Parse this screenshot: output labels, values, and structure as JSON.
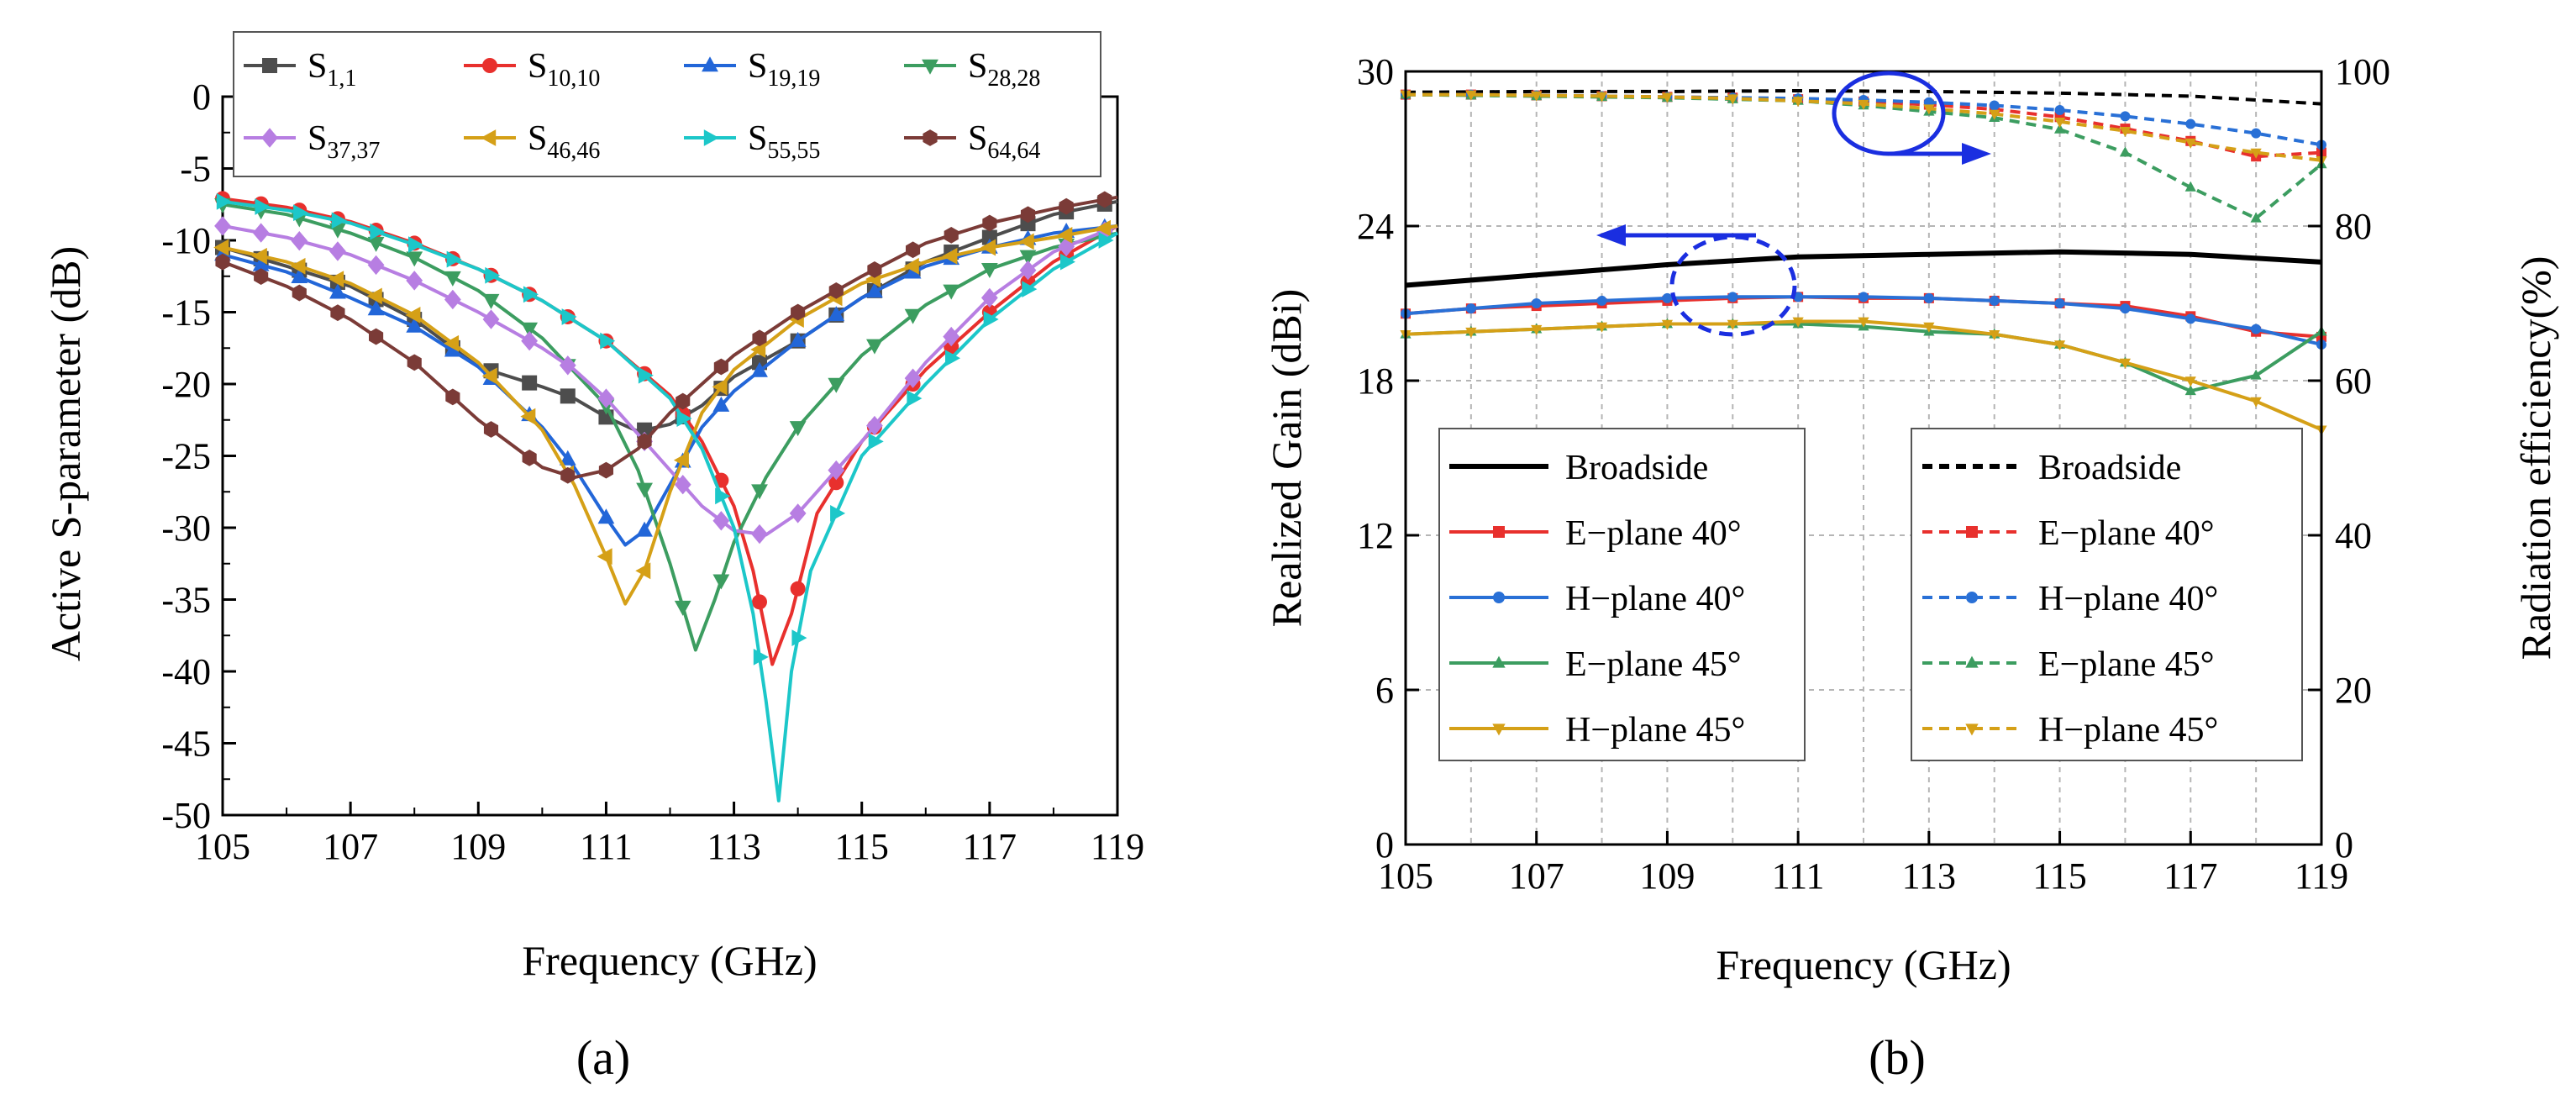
{
  "chart_data": [
    {
      "type": "line",
      "panel_label": "(a)",
      "xlabel": "Frequency (GHz)",
      "ylabel": "Active S-parameter (dB)",
      "xlim": [
        105,
        119
      ],
      "ylim": [
        -50,
        0
      ],
      "xticks": [
        105,
        107,
        109,
        111,
        113,
        115,
        117,
        119
      ],
      "yticks": [
        0,
        -5,
        -10,
        -15,
        -20,
        -25,
        -30,
        -35,
        -40,
        -45,
        -50
      ],
      "legend_position": "top",
      "series": [
        {
          "label": "S",
          "sub": "1,1",
          "color": "#4d4d4d",
          "marker": "square",
          "x": [
            105,
            106,
            107,
            108,
            109,
            110,
            110.5,
            111,
            111.5,
            112,
            112.5,
            113,
            114,
            115,
            116,
            117,
            118,
            119
          ],
          "y": [
            -10.5,
            -11.8,
            -13.2,
            -15.5,
            -18.8,
            -20.2,
            -21,
            -22.3,
            -23.3,
            -22.8,
            -21.5,
            -19.5,
            -17,
            -14,
            -11.5,
            -9.8,
            -8.2,
            -7.3
          ]
        },
        {
          "label": "S",
          "sub": "10,10",
          "color": "#e8302d",
          "marker": "circle",
          "x": [
            105,
            106,
            107,
            108,
            109,
            110,
            111,
            112,
            112.5,
            113,
            113.3,
            113.6,
            113.9,
            114.3,
            115,
            116,
            117,
            118,
            119
          ],
          "y": [
            -7.1,
            -7.7,
            -8.7,
            -10.2,
            -12,
            -14.2,
            -17,
            -20.8,
            -24,
            -28.5,
            -33,
            -39.5,
            -36,
            -29,
            -24,
            -19,
            -15,
            -11.5,
            -9
          ]
        },
        {
          "label": "S",
          "sub": "19,19",
          "color": "#2266d8",
          "marker": "triangle-up",
          "x": [
            105,
            106,
            107,
            108,
            109,
            110,
            110.5,
            111,
            111.3,
            111.6,
            112,
            112.5,
            113,
            114,
            115,
            116,
            117,
            118,
            119
          ],
          "y": [
            -11,
            -12.2,
            -14,
            -16,
            -18.8,
            -23,
            -25.8,
            -29.3,
            -31.2,
            -30.2,
            -27,
            -23,
            -20.5,
            -17,
            -14,
            -11.8,
            -10.5,
            -9.5,
            -9
          ]
        },
        {
          "label": "S",
          "sub": "28,28",
          "color": "#3c9d60",
          "marker": "triangle-down",
          "x": [
            105,
            106,
            107,
            108,
            109,
            110,
            111,
            111.5,
            112,
            112.4,
            112.7,
            113,
            113.5,
            114,
            115,
            116,
            117,
            118,
            119
          ],
          "y": [
            -7.5,
            -8.2,
            -9.5,
            -11.2,
            -13.5,
            -16.8,
            -21.5,
            -26,
            -32.5,
            -38.5,
            -35,
            -31,
            -26.5,
            -23,
            -18,
            -14.5,
            -12,
            -10.5,
            -9.5
          ]
        },
        {
          "label": "S",
          "sub": "37,37",
          "color": "#b77ee2",
          "marker": "diamond",
          "x": [
            105,
            106,
            107,
            108,
            109,
            110,
            110.5,
            111,
            111.5,
            112,
            112.5,
            113,
            113.5,
            114,
            115,
            116,
            117,
            118,
            119
          ],
          "y": [
            -9,
            -9.8,
            -11,
            -12.8,
            -15,
            -17.5,
            -19,
            -21,
            -23.5,
            -26,
            -28.5,
            -30.2,
            -30.5,
            -29,
            -24,
            -18.5,
            -14,
            -10.8,
            -9
          ]
        },
        {
          "label": "S",
          "sub": "46,46",
          "color": "#d5a017",
          "marker": "triangle-left",
          "x": [
            105,
            106,
            107,
            108,
            109,
            110,
            110.5,
            111,
            111.3,
            111.6,
            112,
            112.5,
            113,
            114,
            115,
            116,
            117,
            118,
            119
          ],
          "y": [
            -10.5,
            -11.5,
            -13,
            -15.2,
            -18.5,
            -23.2,
            -27,
            -32,
            -35.3,
            -33,
            -27.5,
            -22,
            -19,
            -15.5,
            -13,
            -11.5,
            -10.5,
            -9.8,
            -9
          ]
        },
        {
          "label": "S",
          "sub": "55,55",
          "color": "#1cc7c9",
          "marker": "triangle-right",
          "x": [
            105,
            106,
            107,
            108,
            109,
            110,
            111,
            112,
            112.5,
            113,
            113.3,
            113.5,
            113.7,
            113.9,
            114.2,
            115,
            116,
            117,
            118,
            119
          ],
          "y": [
            -7.3,
            -7.9,
            -8.8,
            -10.3,
            -12,
            -14.2,
            -17,
            -21,
            -24.5,
            -30,
            -36,
            -42,
            -49,
            -40,
            -33,
            -25,
            -20,
            -15.5,
            -12,
            -9.5
          ]
        },
        {
          "label": "S",
          "sub": "64,64",
          "color": "#7b3b37",
          "marker": "hexagon",
          "x": [
            105,
            106,
            107,
            108,
            109,
            110,
            110.5,
            111,
            111.5,
            112,
            112.5,
            113,
            114,
            115,
            116,
            117,
            118,
            119
          ],
          "y": [
            -11.5,
            -13.2,
            -15.5,
            -18.5,
            -22.5,
            -25.8,
            -26.5,
            -26,
            -24.5,
            -22,
            -20,
            -18,
            -15,
            -12.5,
            -10.2,
            -8.8,
            -7.8,
            -7
          ]
        }
      ]
    },
    {
      "type": "line",
      "panel_label": "(b)",
      "xlabel": "Frequency (GHz)",
      "ylabel_left": "Realized Gain (dBi)",
      "ylabel_right": "Radiation efficiency(%)",
      "xlim": [
        105,
        119
      ],
      "ylim_left": [
        0,
        30
      ],
      "ylim_right": [
        0,
        100
      ],
      "xticks": [
        105,
        107,
        109,
        111,
        113,
        115,
        117,
        119
      ],
      "yticks_left": [
        0,
        6,
        12,
        18,
        24,
        30
      ],
      "yticks_right": [
        0,
        20,
        40,
        60,
        80,
        100
      ],
      "grid": true,
      "gain_series": [
        {
          "label": "Broadside",
          "color": "#000000",
          "marker": "none",
          "x": [
            105,
            107,
            109,
            111,
            113,
            115,
            117,
            119
          ],
          "y": [
            21.7,
            22.1,
            22.5,
            22.8,
            22.9,
            23.0,
            22.9,
            22.6
          ]
        },
        {
          "label": "E−plane 40°",
          "color": "#e8302d",
          "marker": "square",
          "x": [
            105,
            106,
            107,
            108,
            109,
            110,
            111,
            112,
            113,
            114,
            115,
            116,
            117,
            118,
            119
          ],
          "y": [
            20.6,
            20.8,
            20.9,
            21.0,
            21.1,
            21.2,
            21.25,
            21.2,
            21.2,
            21.1,
            21.0,
            20.9,
            20.5,
            19.9,
            19.7
          ]
        },
        {
          "label": "H−plane 40°",
          "color": "#2970d6",
          "marker": "circle",
          "x": [
            105,
            106,
            107,
            108,
            109,
            110,
            111,
            112,
            113,
            114,
            115,
            116,
            117,
            118,
            119
          ],
          "y": [
            20.6,
            20.8,
            21.0,
            21.1,
            21.2,
            21.25,
            21.25,
            21.25,
            21.2,
            21.1,
            21.0,
            20.8,
            20.4,
            20.0,
            19.4
          ]
        },
        {
          "label": "E−plane 45°",
          "color": "#3c9d60",
          "marker": "triangle-up",
          "x": [
            105,
            106,
            107,
            108,
            109,
            110,
            111,
            112,
            113,
            114,
            115,
            116,
            117,
            118,
            119
          ],
          "y": [
            19.8,
            19.9,
            20.0,
            20.1,
            20.2,
            20.2,
            20.2,
            20.1,
            19.9,
            19.8,
            19.4,
            18.7,
            17.6,
            18.2,
            19.9
          ]
        },
        {
          "label": "H−plane 45°",
          "color": "#d5a017",
          "marker": "triangle-down",
          "x": [
            105,
            106,
            107,
            108,
            109,
            110,
            111,
            112,
            113,
            114,
            115,
            116,
            117,
            118,
            119
          ],
          "y": [
            19.8,
            19.9,
            20.0,
            20.1,
            20.2,
            20.2,
            20.3,
            20.3,
            20.1,
            19.8,
            19.4,
            18.7,
            18.0,
            17.2,
            16.1
          ]
        }
      ],
      "efficiency_series": [
        {
          "label": "Broadside",
          "color": "#000000",
          "marker": "none",
          "dashed": true,
          "x": [
            105,
            107,
            109,
            111,
            113,
            115,
            117,
            119
          ],
          "y": [
            97.3,
            97.4,
            97.4,
            97.5,
            97.4,
            97.2,
            96.8,
            95.8
          ]
        },
        {
          "label": "E−plane 40°",
          "color": "#e8302d",
          "marker": "square",
          "dashed": true,
          "x": [
            105,
            106,
            107,
            108,
            109,
            110,
            111,
            112,
            113,
            114,
            115,
            116,
            117,
            118,
            119
          ],
          "y": [
            97,
            97,
            96.9,
            96.8,
            96.7,
            96.6,
            96.4,
            96.1,
            95.7,
            95.1,
            94.1,
            92.6,
            91,
            89,
            89.5
          ]
        },
        {
          "label": "H−plane 40°",
          "color": "#2970d6",
          "marker": "circle",
          "dashed": true,
          "x": [
            105,
            106,
            107,
            108,
            109,
            110,
            111,
            112,
            113,
            114,
            115,
            116,
            117,
            118,
            119
          ],
          "y": [
            97,
            97,
            96.9,
            96.8,
            96.7,
            96.6,
            96.5,
            96.3,
            96,
            95.6,
            95,
            94.2,
            93.2,
            92,
            90.5
          ]
        },
        {
          "label": "E−plane 45°",
          "color": "#3c9d60",
          "marker": "triangle-up",
          "dashed": true,
          "x": [
            105,
            106,
            107,
            108,
            109,
            110,
            111,
            112,
            113,
            114,
            115,
            116,
            117,
            118,
            119
          ],
          "y": [
            97,
            96.9,
            96.8,
            96.7,
            96.6,
            96.4,
            96.2,
            95.6,
            94.8,
            94,
            92.5,
            89.5,
            85,
            81,
            88
          ]
        },
        {
          "label": "H−plane 45°",
          "color": "#d5a017",
          "marker": "triangle-down",
          "dashed": true,
          "x": [
            105,
            106,
            107,
            108,
            109,
            110,
            111,
            112,
            113,
            114,
            115,
            116,
            117,
            118,
            119
          ],
          "y": [
            97,
            97,
            96.9,
            96.8,
            96.7,
            96.5,
            96.2,
            95.8,
            95.2,
            94.5,
            93.5,
            92.3,
            90.8,
            89.5,
            88.5
          ]
        }
      ],
      "legend_left": [
        "Broadside",
        "E−plane 40°",
        "H−plane 40°",
        "E−plane 45°",
        "H−plane 45°"
      ],
      "legend_right": [
        "Broadside",
        "E−plane 40°",
        "H−plane 40°",
        "E−plane 45°",
        "H−plane 45°"
      ],
      "annotations": [
        {
          "kind": "circle-arrow",
          "text": "",
          "style": "solid",
          "points_to": "right axis"
        },
        {
          "kind": "circle-arrow",
          "text": "",
          "style": "dashed",
          "points_to": "left axis"
        }
      ]
    }
  ]
}
